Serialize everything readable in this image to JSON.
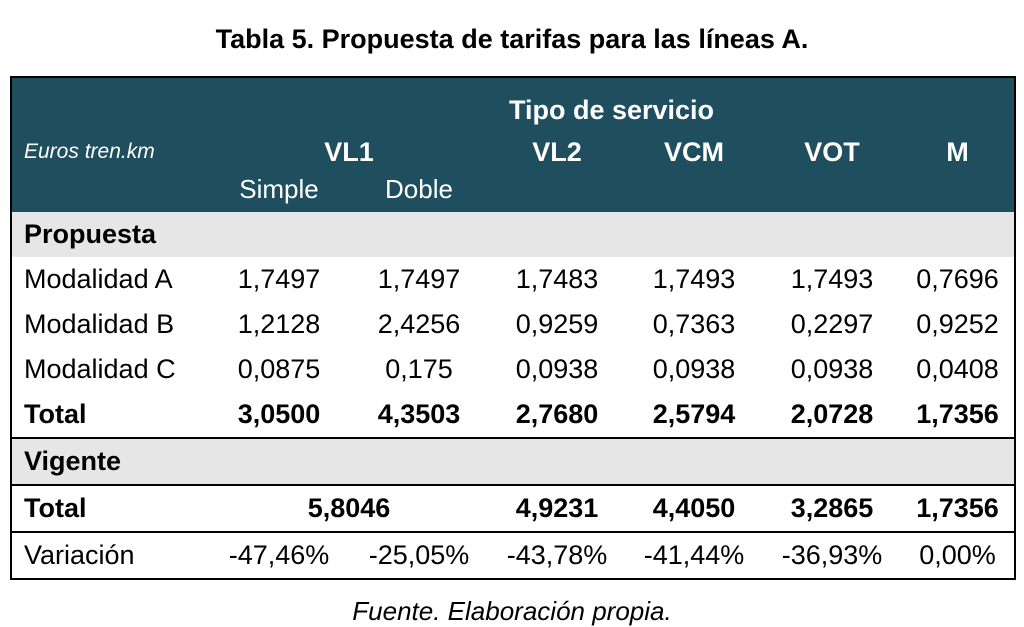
{
  "title": "Tabla 5. Propuesta de tarifas para las líneas A.",
  "header": {
    "super": "Tipo de servicio",
    "unit_label": "Euros tren.km",
    "columns": [
      "VL1",
      "VL2",
      "VCM",
      "VOT",
      "M"
    ],
    "vl1_sub": [
      "Simple",
      "Doble"
    ]
  },
  "sections": {
    "propuesta": "Propuesta",
    "vigente": "Vigente"
  },
  "propuesta_rows": [
    {
      "label": "Modalidad A",
      "values": [
        "1,7497",
        "1,7497",
        "1,7483",
        "1,7493",
        "1,7493",
        "0,7696"
      ]
    },
    {
      "label": "Modalidad B",
      "values": [
        "1,2128",
        "2,4256",
        "0,9259",
        "0,7363",
        "0,2297",
        "0,9252"
      ]
    },
    {
      "label": "Modalidad C",
      "values": [
        "0,0875",
        "0,175",
        "0,0938",
        "0,0938",
        "0,0938",
        "0,0408"
      ]
    },
    {
      "label": "Total",
      "values": [
        "3,0500",
        "4,3503",
        "2,7680",
        "2,5794",
        "2,0728",
        "1,7356"
      ]
    }
  ],
  "vigente_total": {
    "label": "Total",
    "values": [
      "5,8046",
      "4,9231",
      "4,4050",
      "3,2865",
      "1,7356"
    ]
  },
  "variacion": {
    "label": "Variación",
    "values": [
      "-47,46%",
      "-25,05%",
      "-43,78%",
      "-41,44%",
      "-36,93%",
      "0,00%"
    ]
  },
  "source": "Fuente. Elaboración propia.",
  "colors": {
    "header_bg": "#1f4e5f",
    "section_bg": "#e6e6e6"
  }
}
